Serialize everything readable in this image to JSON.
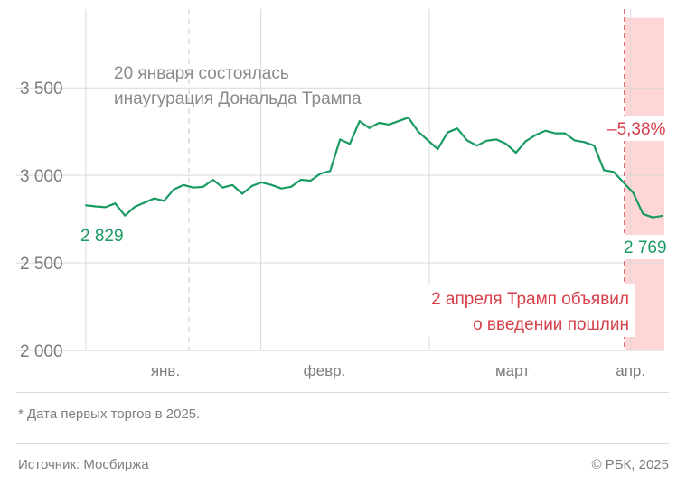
{
  "chart_data": {
    "type": "line",
    "ylim": [
      2000,
      3950
    ],
    "y_ticks": [
      {
        "value": 2000,
        "label": "2 000"
      },
      {
        "value": 2500,
        "label": "2 500"
      },
      {
        "value": 3000,
        "label": "3 000"
      },
      {
        "value": 3500,
        "label": "3 500"
      }
    ],
    "x_ticks": [
      {
        "label": "янв.",
        "t": 0.1375
      },
      {
        "label": "февр.",
        "t": 0.4125
      },
      {
        "label": "март",
        "t": 0.7375
      },
      {
        "label": "апр.",
        "t": 0.9417
      }
    ],
    "series": [
      {
        "color": "#1a9a63",
        "values": [
          2829,
          2823,
          2818,
          2840,
          2770,
          2820,
          2845,
          2868,
          2855,
          2920,
          2945,
          2930,
          2935,
          2975,
          2930,
          2945,
          2895,
          2940,
          2960,
          2945,
          2925,
          2935,
          2975,
          2970,
          3010,
          3025,
          3205,
          3180,
          3310,
          3270,
          3300,
          3290,
          3310,
          3330,
          3250,
          3200,
          3150,
          3245,
          3268,
          3200,
          3170,
          3198,
          3205,
          3180,
          3130,
          3195,
          3230,
          3255,
          3240,
          3240,
          3200,
          3190,
          3170,
          3030,
          3020,
          2960,
          2900,
          2780,
          2760,
          2769
        ]
      }
    ],
    "start_value_label": "2 829",
    "end_value_label": "2 769",
    "annotations": {
      "inauguration_line1": "20 января состоялась",
      "inauguration_line2": "инаугурация Дональда Трампа",
      "tariffs_line1": "2 апреля Трамп объявил",
      "tariffs_line2": "о введении пошлин",
      "change": "–5,38%"
    },
    "colors": {
      "line": "#1a9a63",
      "highlight": "#ffd6d6",
      "marker": "#d6404a",
      "grid": "#d9d9d9"
    }
  },
  "footnote": "* Дата первых торгов в 2025.",
  "source": "Источник: Мосбиржа",
  "copyright": "© РБК, 2025"
}
